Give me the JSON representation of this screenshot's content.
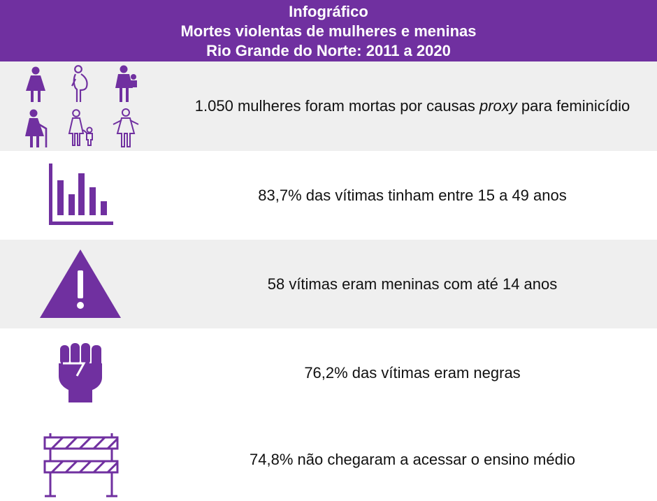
{
  "header": {
    "line1": "Infográfico",
    "line2": "Mortes violentas de mulheres e meninas",
    "line3": "Rio Grande do Norte: 2011 a 2020"
  },
  "rows": [
    {
      "icon": "women-group-icon",
      "text_before": "1.050 mulheres foram mortas por causas ",
      "text_italic": "proxy",
      "text_after": " para feminicídio"
    },
    {
      "icon": "bar-chart-icon",
      "text": "83,7% das vítimas tinham entre 15 a 49 anos"
    },
    {
      "icon": "warning-icon",
      "text": "58 vítimas eram meninas com até 14 anos"
    },
    {
      "icon": "raised-fist-icon",
      "text": "76,2% das vítimas eram negras"
    },
    {
      "icon": "barrier-icon",
      "text": "74,8% não chegaram a acessar o ensino médio"
    }
  ],
  "colors": {
    "accent": "#7030a0",
    "row_gray": "#efefef",
    "header_text": "#ffffff"
  }
}
